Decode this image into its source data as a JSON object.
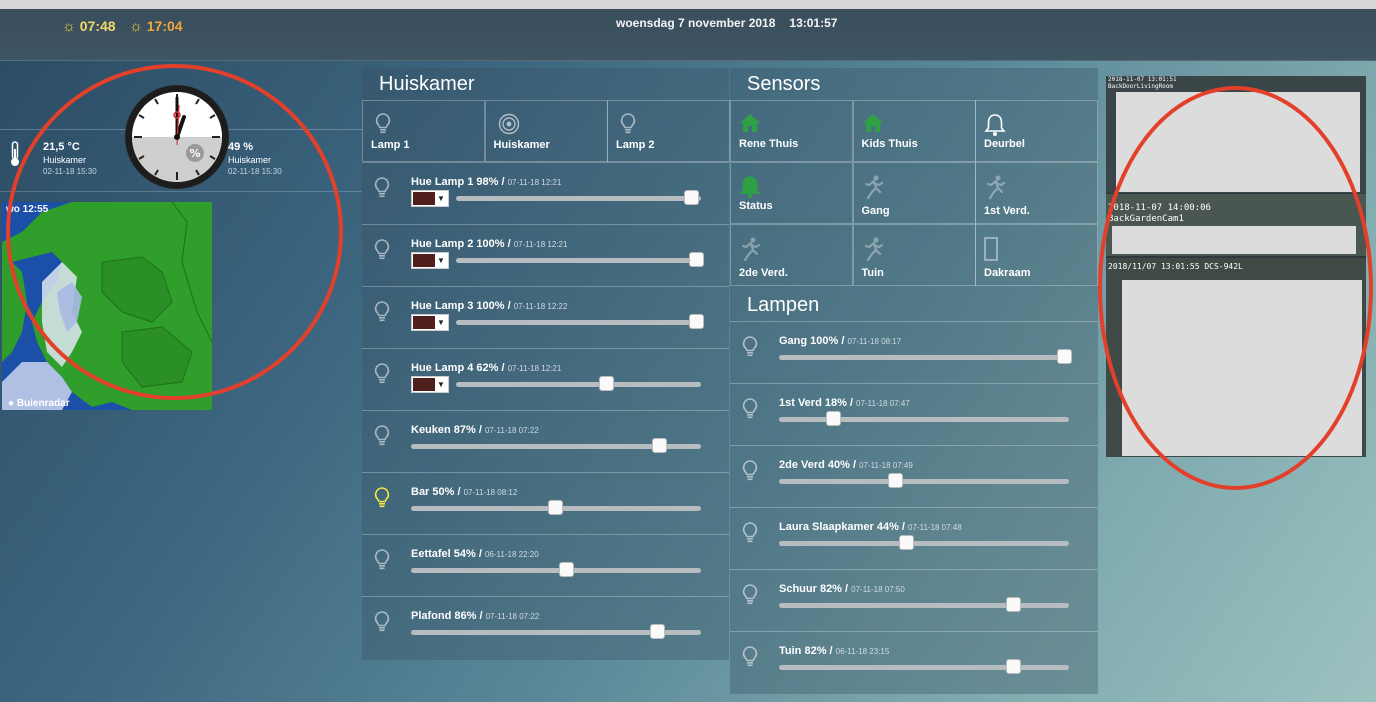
{
  "header": {
    "sunrise": "07:48",
    "sunset": "17:04",
    "date": "woensdag 7 november 2018",
    "time": "13:01:57"
  },
  "climate": {
    "temperature": {
      "value": "21,5 °C",
      "location": "Huiskamer",
      "updated": "02-11-18 15:30"
    },
    "humidity": {
      "value": "49 %",
      "location": "Huiskamer",
      "updated": "02-11-18 15:30"
    }
  },
  "radar": {
    "time": "wo 12:55",
    "brand": "Buienradar"
  },
  "huiskamer": {
    "title": "Huiskamer",
    "switches": [
      {
        "label": "Lamp 1",
        "icon": "bulb-icon"
      },
      {
        "label": "Huiskamer",
        "icon": "speaker-icon"
      },
      {
        "label": "Lamp 2",
        "icon": "bulb-icon"
      }
    ],
    "dimmers": [
      {
        "name": "Hue Lamp 1 98%",
        "ts": "07-11-18 12:21",
        "level": 98,
        "color": true,
        "on": false
      },
      {
        "name": "Hue Lamp 2 100%",
        "ts": "07-11-18 12:21",
        "level": 100,
        "color": true,
        "on": false
      },
      {
        "name": "Hue Lamp 3 100%",
        "ts": "07-11-18 12:22",
        "level": 100,
        "color": true,
        "on": false
      },
      {
        "name": "Hue Lamp 4 62%",
        "ts": "07-11-18 12:21",
        "level": 62,
        "color": true,
        "on": false
      },
      {
        "name": "Keuken 87%",
        "ts": "07-11-18 07:22",
        "level": 87,
        "color": false,
        "on": false
      },
      {
        "name": "Bar 50%",
        "ts": "07-11-18 08:12",
        "level": 50,
        "color": false,
        "on": true
      },
      {
        "name": "Eettafel 54%",
        "ts": "06-11-18 22:20",
        "level": 54,
        "color": false,
        "on": false
      },
      {
        "name": "Plafond 86%",
        "ts": "07-11-18 07:22",
        "level": 86,
        "color": false,
        "on": false
      }
    ]
  },
  "sensors": {
    "title": "Sensors",
    "items": [
      {
        "label": "Rene Thuis",
        "icon": "home-icon"
      },
      {
        "label": "Kids Thuis",
        "icon": "home-icon"
      },
      {
        "label": "Deurbel",
        "icon": "bell-icon"
      },
      {
        "label": "Status",
        "icon": "bell-icon"
      },
      {
        "label": "Gang",
        "icon": "motion-icon"
      },
      {
        "label": "1st Verd.",
        "icon": "motion-icon"
      },
      {
        "label": "2de Verd.",
        "icon": "motion-icon"
      },
      {
        "label": "Tuin",
        "icon": "motion-icon"
      },
      {
        "label": "Dakraam",
        "icon": "window-icon"
      }
    ]
  },
  "lampen": {
    "title": "Lampen",
    "dimmers": [
      {
        "name": "Gang 100%",
        "ts": "07-11-18 08:17",
        "level": 100
      },
      {
        "name": "1st Verd 18%",
        "ts": "07-11-18 07:47",
        "level": 18
      },
      {
        "name": "2de Verd 40%",
        "ts": "07-11-18 07:49",
        "level": 40
      },
      {
        "name": "Laura Slaapkamer 44%",
        "ts": "07-11-18 07:48",
        "level": 44
      },
      {
        "name": "Schuur 82%",
        "ts": "07-11-18 07:50",
        "level": 82
      },
      {
        "name": "Tuin 82%",
        "ts": "06-11-18 23:15",
        "level": 82
      }
    ]
  },
  "cameras": [
    {
      "stamp": "2018-11-07 13:01:51",
      "name": "BackDoorLivingRoom"
    },
    {
      "stamp": "2018-11-07 14:00:06",
      "name": "BackGardenCam1"
    },
    {
      "stamp": "2018/11/07 13:01:55 DCS-942L",
      "name": ""
    }
  ],
  "colors": {
    "accent_green": "#2fa044",
    "bulb_on": "#f5e642",
    "highlight_ring": "#e2402b"
  }
}
